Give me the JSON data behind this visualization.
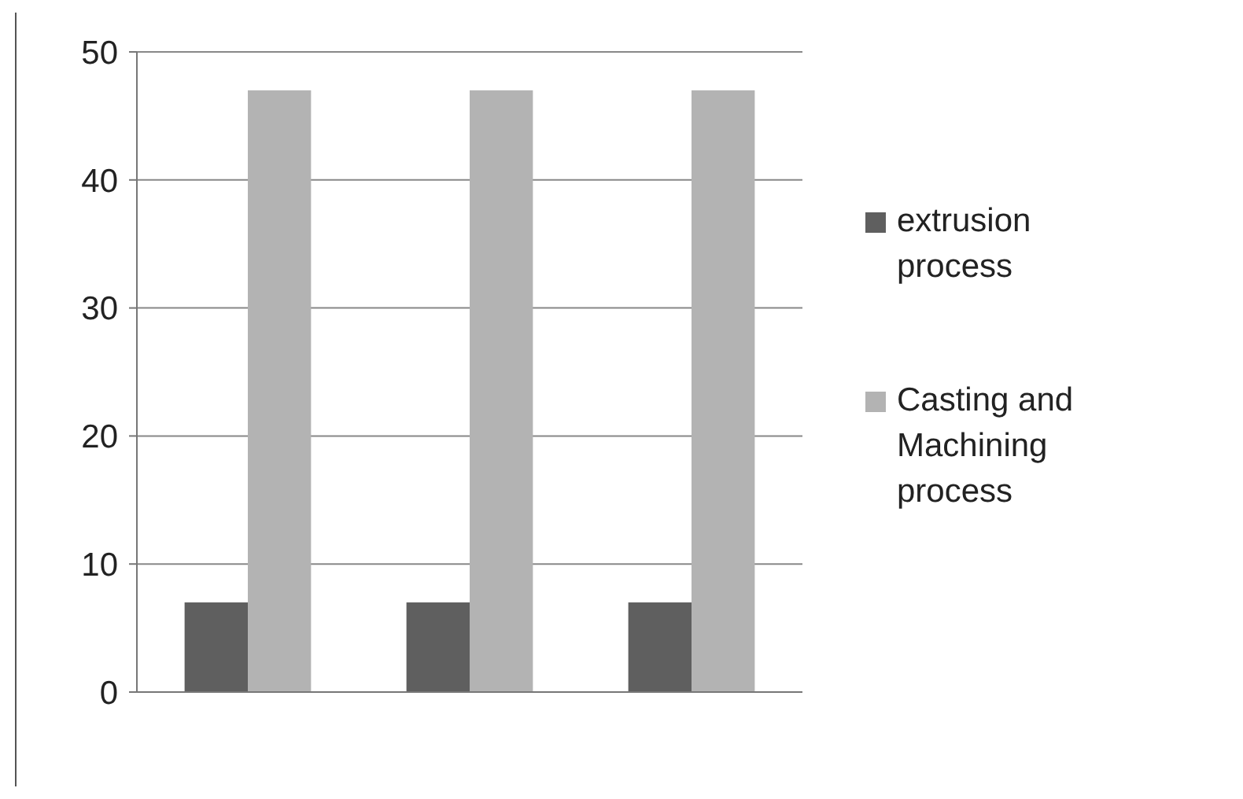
{
  "chart_data": {
    "type": "bar",
    "categories": [
      null,
      null,
      null
    ],
    "series": [
      {
        "name": "extrusion process",
        "color": "#5f5f5f",
        "values": [
          7,
          7,
          7
        ]
      },
      {
        "name": "Casting and Machining process",
        "color": "#b3b3b3",
        "values": [
          47,
          47,
          47
        ]
      }
    ],
    "ylim": [
      0,
      50
    ],
    "yticks": [
      0,
      10,
      20,
      30,
      40,
      50
    ],
    "grid": "y",
    "legend": "right"
  }
}
